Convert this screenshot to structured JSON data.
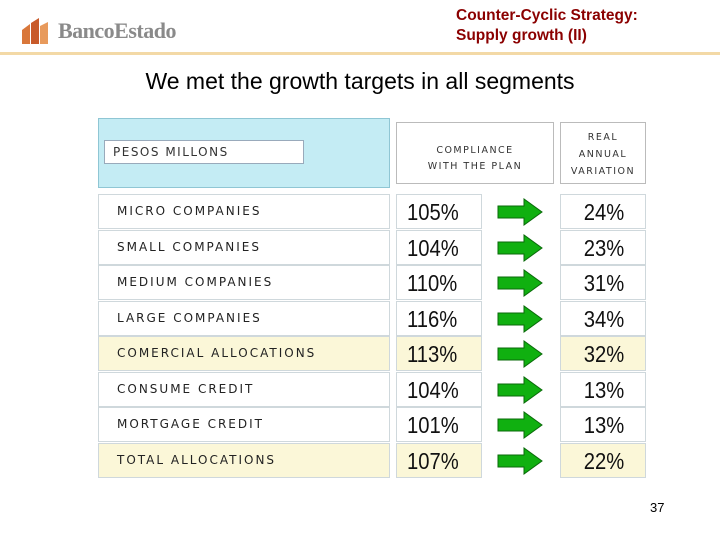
{
  "header": {
    "logo_text": "BancoEstado",
    "title_line1": "Counter-Cyclic Strategy:",
    "title_line2": "Supply growth (II)"
  },
  "subtitle": "We met the growth targets in all segments",
  "table": {
    "col_pesos": "Pesos Millons",
    "col_compliance_1": "Compliance",
    "col_compliance_2": "with the plan",
    "col_real_1": "Real",
    "col_real_2": "Annual",
    "col_real_3": "Variation",
    "rows": [
      {
        "label": "Micro Companies",
        "compliance": "105%",
        "variation": "24%",
        "highlight": false
      },
      {
        "label": "Small Companies",
        "compliance": "104%",
        "variation": "23%",
        "highlight": false
      },
      {
        "label": "Medium Companies",
        "compliance": "110%",
        "variation": "31%",
        "highlight": false
      },
      {
        "label": "Large Companies",
        "compliance": "116%",
        "variation": "34%",
        "highlight": false
      },
      {
        "label": "Comercial Allocations",
        "compliance": "113%",
        "variation": "32%",
        "highlight": true
      },
      {
        "label": "Consume Credit",
        "compliance": "104%",
        "variation": "13%",
        "highlight": false
      },
      {
        "label": "Mortgage Credit",
        "compliance": "101%",
        "variation": "13%",
        "highlight": false
      },
      {
        "label": "Total Allocations",
        "compliance": "107%",
        "variation": "22%",
        "highlight": true
      }
    ]
  },
  "colors": {
    "title": "#8b0000",
    "header_bg": "#c4ecf4",
    "highlight_bg": "#fbf7d8",
    "arrow_fill": "#10b010"
  },
  "page_number": "37"
}
